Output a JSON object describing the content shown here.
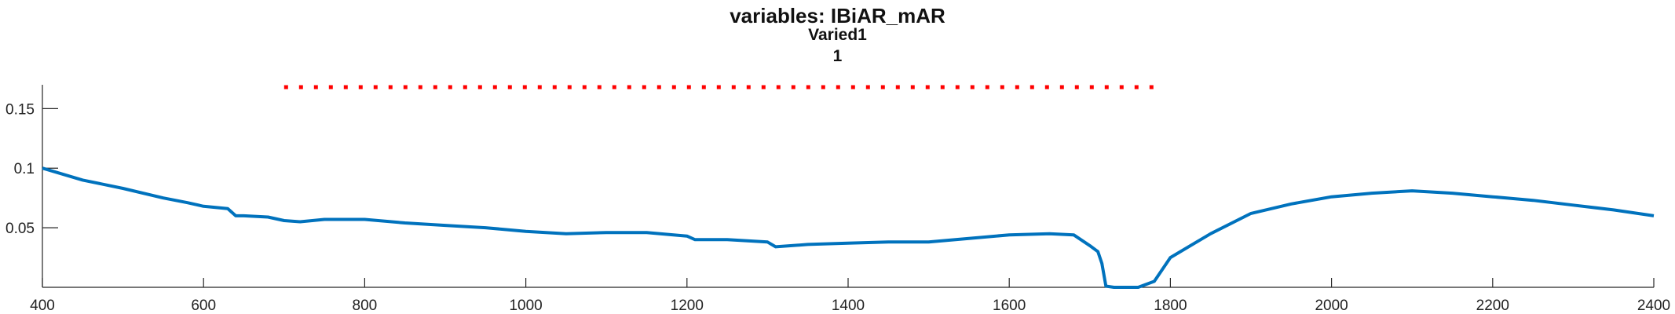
{
  "chart_data": {
    "type": "line",
    "title": "variables: IBiAR_mAR",
    "subtitle": "Varied1",
    "subtitle2": "1",
    "xlabel": "",
    "ylabel": "",
    "xlim": [
      400,
      2400
    ],
    "ylim": [
      0,
      0.17
    ],
    "xticks": [
      "400",
      "600",
      "800",
      "1000",
      "1200",
      "1400",
      "1600",
      "1800",
      "2000",
      "2200",
      "2400"
    ],
    "yticks": [
      "0.05",
      "0.1",
      "0.15"
    ],
    "ytick_values": [
      0.05,
      0.1,
      0.15
    ],
    "grid": false,
    "series": [
      {
        "color": "#0072BD",
        "style": "solid",
        "x": [
          400,
          450,
          500,
          550,
          580,
          600,
          630,
          640,
          650,
          680,
          700,
          720,
          750,
          800,
          850,
          900,
          950,
          1000,
          1050,
          1100,
          1150,
          1200,
          1210,
          1250,
          1300,
          1310,
          1350,
          1400,
          1450,
          1500,
          1550,
          1600,
          1650,
          1680,
          1700,
          1710,
          1715,
          1720,
          1730,
          1760,
          1780,
          1800,
          1850,
          1900,
          1950,
          2000,
          2050,
          2100,
          2150,
          2200,
          2250,
          2300,
          2350,
          2400
        ],
        "y": [
          0.1,
          0.09,
          0.083,
          0.075,
          0.071,
          0.068,
          0.066,
          0.06,
          0.06,
          0.059,
          0.056,
          0.055,
          0.057,
          0.057,
          0.054,
          0.052,
          0.05,
          0.047,
          0.045,
          0.046,
          0.046,
          0.043,
          0.04,
          0.04,
          0.038,
          0.034,
          0.036,
          0.037,
          0.038,
          0.038,
          0.041,
          0.044,
          0.045,
          0.044,
          0.035,
          0.03,
          0.02,
          0.001,
          0.0,
          0.0,
          0.005,
          0.025,
          0.045,
          0.062,
          0.07,
          0.076,
          0.079,
          0.081,
          0.079,
          0.076,
          0.073,
          0.069,
          0.065,
          0.06
        ]
      },
      {
        "color": "#FF0000",
        "style": "dotted",
        "x": [
          700,
          1780
        ],
        "y": [
          0.168,
          0.168
        ]
      }
    ]
  }
}
